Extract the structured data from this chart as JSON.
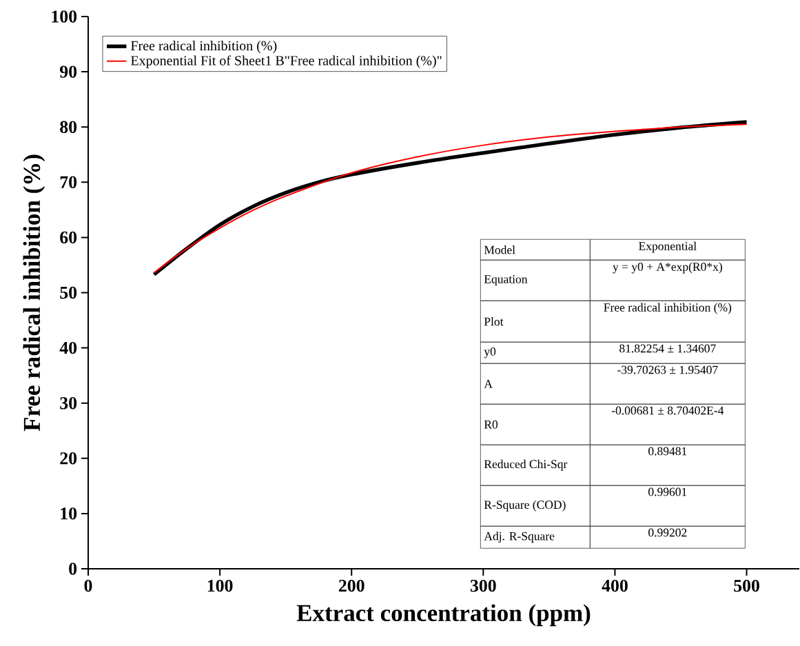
{
  "chart_data": {
    "type": "line",
    "xlabel": "Extract concentration (ppm)",
    "ylabel": "Free radical inhibition (%)",
    "xlim": [
      0,
      540
    ],
    "ylim": [
      0,
      100
    ],
    "xticks": [
      0,
      100,
      200,
      300,
      400,
      500
    ],
    "yticks": [
      0,
      10,
      20,
      30,
      40,
      50,
      60,
      70,
      80,
      90,
      100
    ],
    "grid": false,
    "legend": "top left",
    "marker": "none",
    "line_style": "solid",
    "series": [
      {
        "name": "Free radical inhibition (%)",
        "color": "#000000",
        "x": [
          50,
          75,
          100,
          125,
          150,
          175,
          200,
          250,
          300,
          350,
          400,
          450,
          500
        ],
        "values": [
          53.3,
          58.0,
          62.3,
          65.6,
          68.1,
          70.0,
          71.4,
          73.5,
          75.3,
          77.0,
          78.6,
          79.9,
          80.9
        ]
      },
      {
        "name": "Exponential Fit of Sheet1 B\"Free radical inhibition (%)\"",
        "color": "#ff0000",
        "x": [
          50,
          75,
          100,
          125,
          150,
          200,
          250,
          300,
          350,
          400,
          450,
          500
        ],
        "values": [
          53.6,
          58.0,
          61.7,
          64.9,
          67.5,
          71.7,
          74.6,
          76.7,
          78.2,
          79.2,
          80.0,
          80.5
        ]
      }
    ],
    "annotations": [
      "Model",
      "Exponential",
      "Equation",
      "y = y0 + A*exp(R0*x)",
      "Plot",
      "Free radical inhibition (%)",
      "y0",
      "81.82254 ± 1.34607",
      "A",
      "-39.70263 ± 1.95407",
      "R0",
      "-0.00681 ± 8.70402E-4",
      "Reduced Chi-Sqr",
      "0.89481",
      "R-Square (COD)",
      "0.99601",
      "Adj. R-Square",
      "0.99202"
    ]
  }
}
